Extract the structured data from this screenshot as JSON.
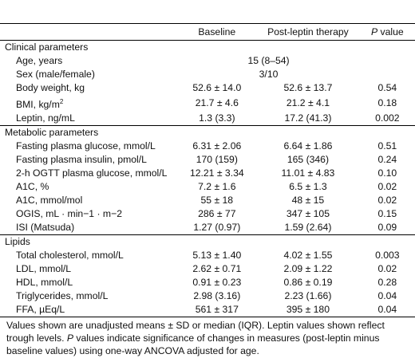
{
  "header": {
    "col_blank": "",
    "col_baseline": "Baseline",
    "col_post": "Post-leptin therapy",
    "col_p_italic": "P",
    "col_p_rest": " value"
  },
  "sections": [
    {
      "title": "Clinical parameters",
      "rows": [
        {
          "label": "Age, years",
          "span": "15 (8–54)"
        },
        {
          "label": "Sex (male/female)",
          "span": "3/10"
        },
        {
          "label": "Body weight, kg",
          "baseline": "52.6 ± 14.0",
          "post": "52.6 ± 13.7",
          "p": "0.54"
        },
        {
          "label_main": "BMI, kg/m",
          "label_sup": "2",
          "baseline": "21.7 ± 4.6",
          "post": "21.2 ± 4.1",
          "p": "0.18"
        },
        {
          "label": "Leptin, ng/mL",
          "baseline": "1.3 (3.3)",
          "post": "17.2 (41.3)",
          "p": "0.002"
        }
      ]
    },
    {
      "title": "Metabolic parameters",
      "rows": [
        {
          "label": "Fasting plasma glucose, mmol/L",
          "baseline": "6.31 ± 2.06",
          "post": "6.64 ± 1.86",
          "p": "0.51"
        },
        {
          "label": "Fasting plasma insulin, pmol/L",
          "baseline": "170 (159)",
          "post": "165 (346)",
          "p": "0.24"
        },
        {
          "label": "2-h OGTT plasma glucose, mmol/L",
          "baseline": "12.21 ± 3.34",
          "post": "11.01 ± 4.83",
          "p": "0.10"
        },
        {
          "label": "A1C, %",
          "baseline": "7.2 ± 1.6",
          "post": "6.5 ± 1.3",
          "p": "0.02"
        },
        {
          "label": "A1C, mmol/mol",
          "baseline": "55 ± 18",
          "post": "48 ± 15",
          "p": "0.02"
        },
        {
          "label": "OGIS, mL · min−1 · m−2",
          "baseline": "286 ± 77",
          "post": "347 ± 105",
          "p": "0.15"
        },
        {
          "label": "ISI (Matsuda)",
          "baseline": "1.27 (0.97)",
          "post": "1.59 (2.64)",
          "p": "0.09"
        }
      ]
    },
    {
      "title": "Lipids",
      "rows": [
        {
          "label": "Total cholesterol, mmol/L",
          "baseline": "5.13 ± 1.40",
          "post": "4.02 ± 1.55",
          "p": "0.003"
        },
        {
          "label": "LDL, mmol/L",
          "baseline": "2.62 ± 0.71",
          "post": "2.09 ± 1.22",
          "p": "0.02"
        },
        {
          "label": "HDL, mmol/L",
          "baseline": "0.91 ± 0.23",
          "post": "0.86 ± 0.19",
          "p": "0.28"
        },
        {
          "label": "Triglycerides, mmol/L",
          "baseline": "2.98 (3.16)",
          "post": "2.23 (1.66)",
          "p": "0.04"
        },
        {
          "label": "FFA, µEq/L",
          "baseline": "561 ± 317",
          "post": "395 ± 180",
          "p": "0.04"
        }
      ]
    }
  ],
  "footnote": {
    "part1": "Values shown are unadjusted means ± SD or median (IQR). Leptin values shown reflect trough levels. ",
    "p_italic": "P",
    "part2": " values indicate significance of changes in measures (post-leptin minus baseline values) using one-way ANCOVA adjusted for age."
  }
}
